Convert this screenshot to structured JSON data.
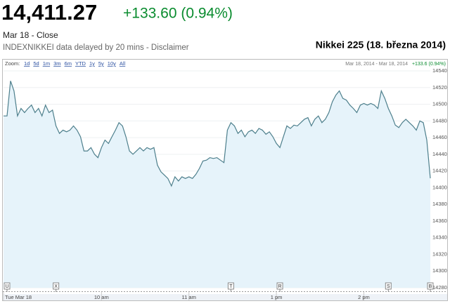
{
  "header": {
    "price": "14,411.27",
    "change": "+133.60 (0.94%)",
    "date": "Mar 18 - Close",
    "note": "INDEXNIKKEI data delayed by 20 mins - Disclaimer"
  },
  "chart_data": {
    "type": "line",
    "title": "Nikkei 225 (18. března 2014)",
    "zoom_label": "Zoom:",
    "zoom_options": [
      "1d",
      "5d",
      "1m",
      "3m",
      "6m",
      "YTD",
      "1y",
      "5y",
      "10y",
      "All"
    ],
    "range": "Mar 18, 2014 - Mar 18, 2014",
    "range_change": "+133.6 (0.94%)",
    "xlim": [
      0,
      122
    ],
    "xticks": [
      {
        "value": 0,
        "label": "Tue Mar 18"
      },
      {
        "value": 28,
        "label": "10 am"
      },
      {
        "value": 53,
        "label": "11 am"
      },
      {
        "value": 78,
        "label": "1 pm"
      },
      {
        "value": 103,
        "label": "2 pm"
      }
    ],
    "ylim": [
      14280,
      14540
    ],
    "yticks": [
      14280,
      14300,
      14320,
      14340,
      14360,
      14380,
      14400,
      14420,
      14440,
      14460,
      14480,
      14500,
      14520,
      14540
    ],
    "grid": true,
    "flags": [
      {
        "label": "U",
        "x": 1
      },
      {
        "label": "X",
        "x": 15
      },
      {
        "label": "T",
        "x": 65
      },
      {
        "label": "R",
        "x": 79
      },
      {
        "label": "S",
        "x": 110
      },
      {
        "label": "B",
        "x": 122
      }
    ],
    "series": [
      {
        "color": "#4d7f8c",
        "fill": "#e6f3fa",
        "values": [
          14486,
          14486,
          14528,
          14516,
          14486,
          14495,
          14490,
          14495,
          14499,
          14490,
          14495,
          14486,
          14499,
          14490,
          14493,
          14474,
          14465,
          14469,
          14467,
          14469,
          14474,
          14469,
          14461,
          14444,
          14444,
          14448,
          14440,
          14436,
          14448,
          14457,
          14453,
          14461,
          14469,
          14478,
          14474,
          14461,
          14444,
          14440,
          14444,
          14448,
          14444,
          14448,
          14446,
          14448,
          14427,
          14419,
          14415,
          14411,
          14402,
          14413,
          14408,
          14413,
          14411,
          14413,
          14411,
          14416,
          14423,
          14432,
          14433,
          14436,
          14435,
          14436,
          14433,
          14430,
          14469,
          14478,
          14474,
          14465,
          14469,
          14461,
          14467,
          14469,
          14465,
          14471,
          14469,
          14464,
          14467,
          14461,
          14453,
          14448,
          14461,
          14474,
          14471,
          14475,
          14474,
          14478,
          14482,
          14484,
          14474,
          14482,
          14486,
          14478,
          14482,
          14490,
          14503,
          14511,
          14516,
          14507,
          14505,
          14499,
          14495,
          14490,
          14499,
          14501,
          14499,
          14501,
          14499,
          14495,
          14516,
          14507,
          14495,
          14486,
          14475,
          14472,
          14478,
          14482,
          14478,
          14474,
          14469,
          14480,
          14478,
          14457,
          14411.27
        ]
      }
    ]
  }
}
